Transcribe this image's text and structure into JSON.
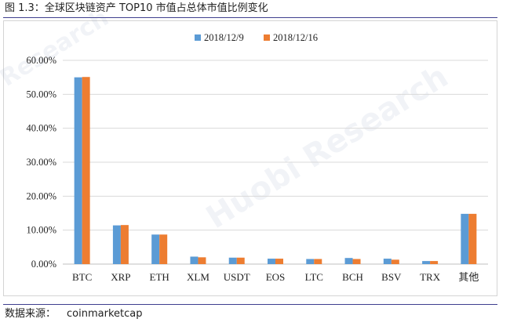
{
  "header": {
    "title": "图 1.3：全球区块链资产 TOP10 市值占总体市值比例变化"
  },
  "footer": {
    "source_label": "数据来源：",
    "source_value": "coinmarketcap"
  },
  "watermark": {
    "text_main": "Huobi Research",
    "text_corner": "Research"
  },
  "colors": {
    "series_1": "#5b9bd5",
    "series_2": "#ed7d31",
    "rule": "#3f3f8f",
    "grid": "#d9d9d9",
    "axis": "#bfbfbf"
  },
  "chart_data": {
    "type": "bar",
    "categories": [
      "BTC",
      "XRP",
      "ETH",
      "XLM",
      "USDT",
      "EOS",
      "LTC",
      "BCH",
      "BSV",
      "TRX",
      "其他"
    ],
    "series": [
      {
        "name": "2018/12/9",
        "values": [
          55.0,
          11.4,
          8.7,
          2.2,
          1.9,
          1.6,
          1.5,
          1.8,
          1.6,
          0.9,
          14.8
        ]
      },
      {
        "name": "2018/12/16",
        "values": [
          55.1,
          11.5,
          8.7,
          2.0,
          1.9,
          1.6,
          1.5,
          1.5,
          1.3,
          0.9,
          14.8
        ]
      }
    ],
    "y_ticks": [
      "0.00%",
      "10.00%",
      "20.00%",
      "30.00%",
      "40.00%",
      "50.00%",
      "60.00%"
    ],
    "ylim": [
      0,
      60
    ],
    "grid": true,
    "legend_position": "top"
  }
}
